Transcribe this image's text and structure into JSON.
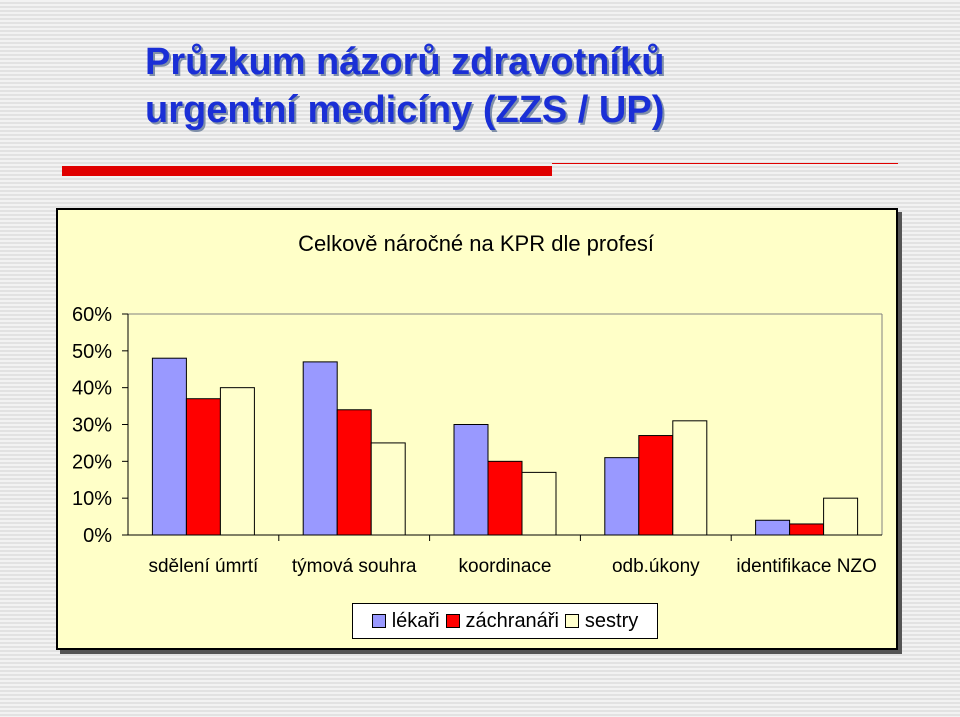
{
  "slide": {
    "title_line1": "Průzkum názorů zdravotníků",
    "title_line2": "urgentní medicíny (ZZS / UP)"
  },
  "colors": {
    "title": "#1a2fd6",
    "accent": "#e00000",
    "plot_background": "#ffffc8"
  },
  "chart_data": {
    "type": "bar",
    "title": "Celkově náročné na KPR dle profesí",
    "categories": [
      "sdělení úmrtí",
      "týmová souhra",
      "koordinace",
      "odb.úkony",
      "identifikace NZO"
    ],
    "series": [
      {
        "name": "lékaři",
        "color": "#9999ff",
        "values": [
          48,
          47,
          30,
          21,
          4
        ]
      },
      {
        "name": "záchranáři",
        "color": "#ff0000",
        "values": [
          37,
          34,
          20,
          27,
          3
        ]
      },
      {
        "name": "sestry",
        "color": "#ffffcc",
        "values": [
          40,
          25,
          17,
          31,
          10
        ]
      }
    ],
    "ylim": [
      0,
      60
    ],
    "yticks": [
      "0%",
      "10%",
      "20%",
      "30%",
      "40%",
      "50%",
      "60%"
    ],
    "grid": false,
    "legend_position": "bottom"
  }
}
